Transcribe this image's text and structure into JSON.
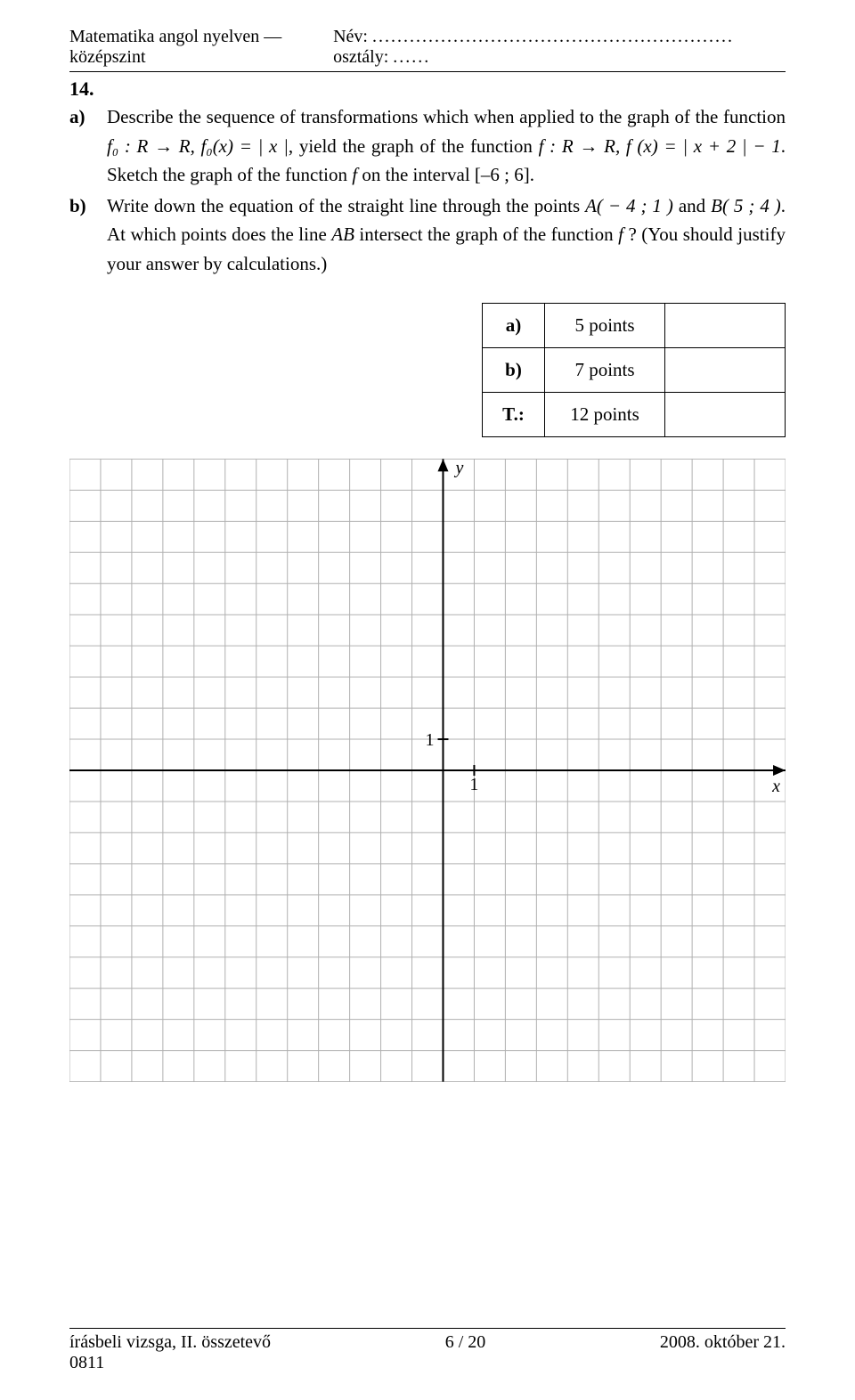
{
  "header": {
    "left": "Matematika angol nyelven — középszint",
    "name_label": "Név:",
    "name_dots": "..........................................................",
    "class_label": "osztály:",
    "class_dots": "......"
  },
  "question_number": "14.",
  "part_a": {
    "label": "a)",
    "text_1": "Describe the sequence of transformations which when applied to the graph of the function ",
    "math_1": "f₀ : R → R,  f₀(x) = | x |",
    "text_2": ", yield the graph of the function ",
    "math_2": "f : R → R,  f (x) = | x + 2 | − 1",
    "text_3": ". Sketch the graph of the function ",
    "math_f": "f",
    "text_4": " on the interval [–6 ; 6]."
  },
  "part_b": {
    "label": "b)",
    "text_1": "Write down the equation of the straight line through the points ",
    "math_A": "A( − 4 ; 1 )",
    "text_2": " and ",
    "math_B": "B( 5 ; 4 )",
    "text_3": ". At which points does the line ",
    "math_AB": "AB",
    "text_4": " intersect the graph of the function ",
    "math_f": "f ",
    "text_5": "? (You should justify your answer by calculations.)"
  },
  "points_table": {
    "rows": [
      {
        "label": "a)",
        "points": "5 points"
      },
      {
        "label": "b)",
        "points": "7 points"
      },
      {
        "label": "T.:",
        "points": "12 points"
      }
    ]
  },
  "grid": {
    "cell": 35,
    "cols": 23,
    "rows_g": 20,
    "origin_col": 12,
    "origin_row": 10,
    "grid_color": "#b0b0b0",
    "axis_color": "#000000",
    "y_label": "y",
    "x_label": "x",
    "tick_label": "1",
    "label_fontsize": 20
  },
  "footer": {
    "left": "írásbeli vizsga, II. összetevő",
    "center": "6 / 20",
    "right": "2008. október 21.",
    "code": "0811"
  }
}
